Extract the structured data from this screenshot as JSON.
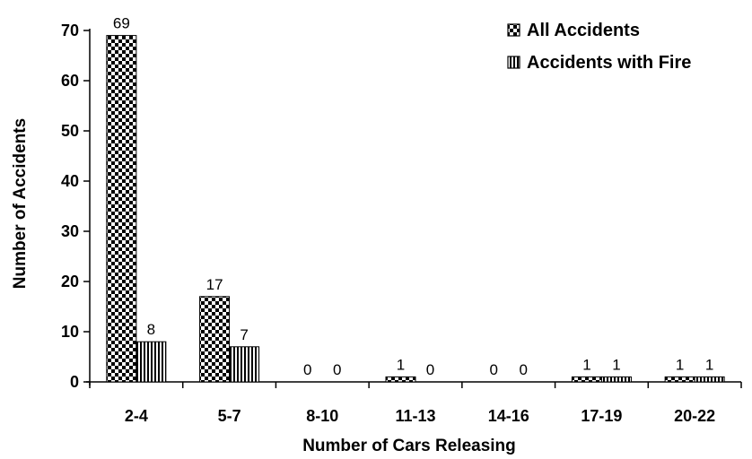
{
  "chart_data": {
    "type": "bar",
    "categories": [
      "2-4",
      "5-7",
      "8-10",
      "11-13",
      "14-16",
      "17-19",
      "20-22"
    ],
    "series": [
      {
        "name": "All Accidents",
        "values": [
          69,
          17,
          0,
          1,
          0,
          1,
          1
        ],
        "pattern": "checker"
      },
      {
        "name": "Accidents with Fire",
        "values": [
          8,
          7,
          0,
          0,
          0,
          1,
          1
        ],
        "pattern": "vertical-stripes"
      }
    ],
    "data_labels": [
      [
        "69",
        "17",
        "0",
        "1",
        "0",
        "1",
        "1"
      ],
      [
        "8",
        "7",
        "0",
        "0",
        "0",
        "1",
        "1"
      ]
    ],
    "xlabel": "Number of Cars Releasing",
    "ylabel": "Number of Accidents",
    "ylim": [
      0,
      70
    ],
    "yticks": [
      "0",
      "10",
      "20",
      "30",
      "40",
      "50",
      "60",
      "70"
    ],
    "grid": false,
    "legend_position": "top-right",
    "colors": {
      "ink": "#000000",
      "background": "#ffffff"
    }
  }
}
